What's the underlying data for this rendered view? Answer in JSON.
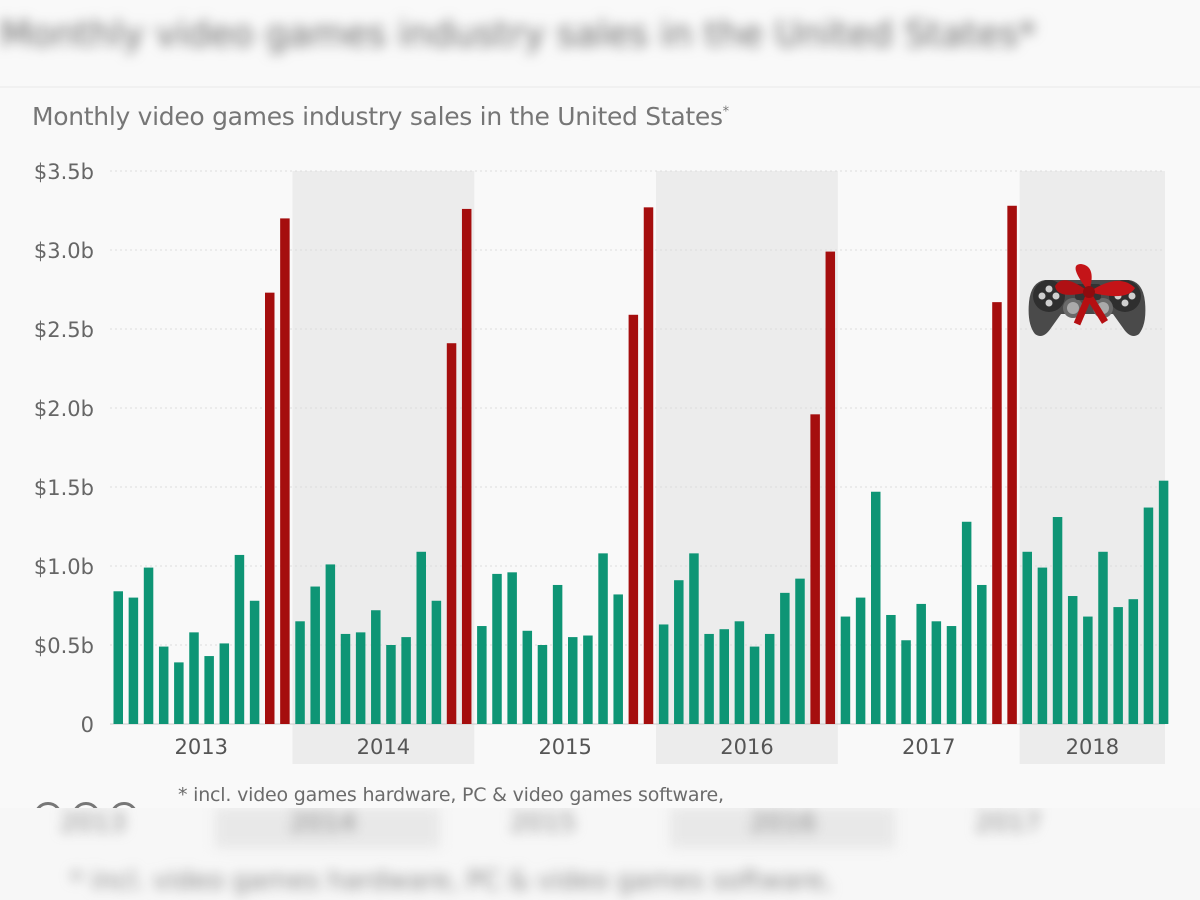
{
  "header": {
    "blurred_title": "Monthly video games industry sales in the United States*",
    "subtitle": "Monthly video games industry sales in the United States",
    "subtitle_marker": "*"
  },
  "footer": {
    "footnote": "* incl. video games hardware, PC & video games software,",
    "license_icons": [
      "cc-icon",
      "by-icon",
      "nd-icon"
    ]
  },
  "colors": {
    "regular_month": "#0e9575",
    "holiday_month": "#a50e0e",
    "band": "#ececec",
    "background": "#f9f9f9",
    "text": "#666666"
  },
  "chart_data": {
    "type": "bar",
    "title": "",
    "subtitle": "Monthly video games industry sales in the United States*",
    "xlabel": "",
    "ylabel": "",
    "ylim": [
      0,
      3.5
    ],
    "yticks": [
      0,
      0.5,
      1.0,
      1.5,
      2.0,
      2.5,
      3.0,
      3.5
    ],
    "ytick_labels": [
      "0",
      "$0.5b",
      "$1.0b",
      "$1.5b",
      "$2.0b",
      "$2.5b",
      "$3.0b",
      "$3.5b"
    ],
    "grid": true,
    "unit": "billion USD",
    "highlight_note": "November and December bars shown in red",
    "decoration": "gamepad-with-bow-icon",
    "years": [
      {
        "label": "2013",
        "shaded": false,
        "values": [
          0.84,
          0.8,
          0.99,
          0.49,
          0.39,
          0.58,
          0.43,
          0.51,
          1.07,
          0.78,
          2.73,
          3.2
        ]
      },
      {
        "label": "2014",
        "shaded": true,
        "values": [
          0.65,
          0.87,
          1.01,
          0.57,
          0.58,
          0.72,
          0.5,
          0.55,
          1.09,
          0.78,
          2.41,
          3.26
        ]
      },
      {
        "label": "2015",
        "shaded": false,
        "values": [
          0.62,
          0.95,
          0.96,
          0.59,
          0.5,
          0.88,
          0.55,
          0.56,
          1.08,
          0.82,
          2.59,
          3.27
        ]
      },
      {
        "label": "2016",
        "shaded": true,
        "values": [
          0.63,
          0.91,
          1.08,
          0.57,
          0.6,
          0.65,
          0.49,
          0.57,
          0.83,
          0.92,
          1.96,
          2.99
        ]
      },
      {
        "label": "2017",
        "shaded": false,
        "values": [
          0.68,
          0.8,
          1.47,
          0.69,
          0.53,
          0.76,
          0.65,
          0.62,
          1.28,
          0.88,
          2.67,
          3.28
        ]
      },
      {
        "label": "2018",
        "shaded": true,
        "values": [
          1.09,
          0.99,
          1.31,
          0.81,
          0.68,
          1.09,
          0.74,
          0.79,
          1.37,
          1.54
        ]
      }
    ],
    "highlight_months": [
      11,
      12
    ]
  }
}
